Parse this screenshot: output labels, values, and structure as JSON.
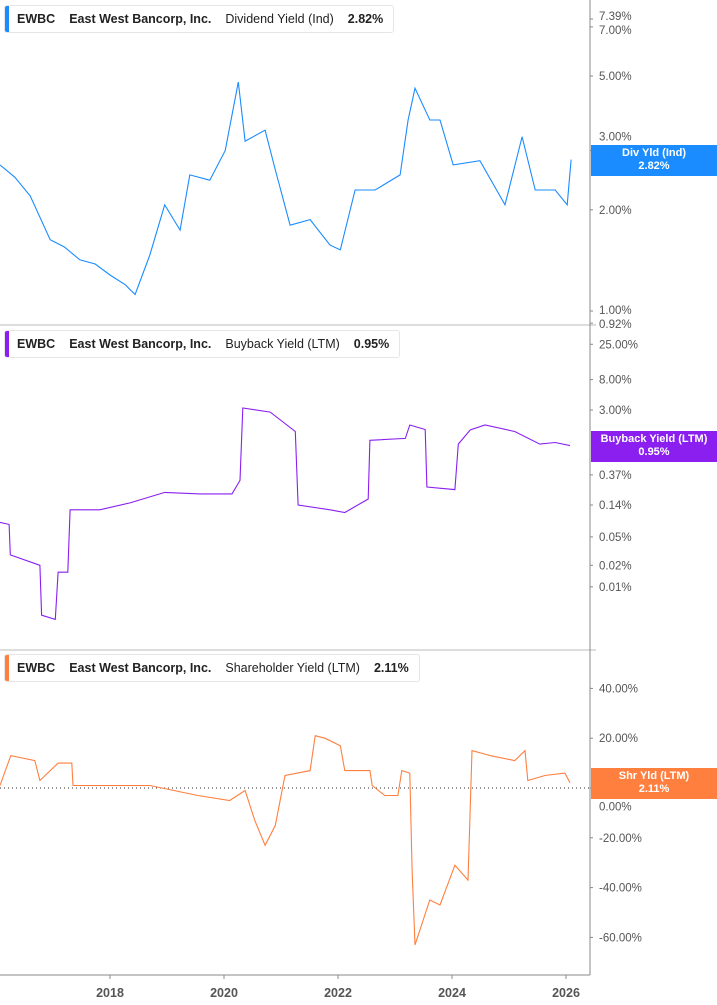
{
  "chart_data": [
    {
      "type": "line",
      "ticker": "EWBC",
      "company": "East West Bancorp, Inc.",
      "metric": "Dividend Yield (Ind)",
      "latest_value": "2.82%",
      "tag_label": "Div Yld (Ind)",
      "color": "#1a8cff",
      "yscale": "log",
      "ylim": [
        0.92,
        7.39
      ],
      "yticks": [
        7.39,
        7.0,
        5.0,
        3.0,
        2.0,
        1.0,
        0.92
      ],
      "ytick_labels": [
        "7.39%",
        "7.00%",
        "5.00%",
        "3.00%",
        "2.00%",
        "1.00%",
        "0.92%"
      ],
      "points": [
        [
          2016.07,
          2.72
        ],
        [
          2016.33,
          2.5
        ],
        [
          2016.6,
          2.2
        ],
        [
          2016.95,
          1.63
        ],
        [
          2017.2,
          1.55
        ],
        [
          2017.47,
          1.42
        ],
        [
          2017.74,
          1.38
        ],
        [
          2018.0,
          1.28
        ],
        [
          2018.26,
          1.2
        ],
        [
          2018.44,
          1.12
        ],
        [
          2018.7,
          1.47
        ],
        [
          2018.96,
          2.07
        ],
        [
          2019.23,
          1.74
        ],
        [
          2019.4,
          2.54
        ],
        [
          2019.75,
          2.45
        ],
        [
          2020.02,
          3.0
        ],
        [
          2020.25,
          4.8
        ],
        [
          2020.37,
          3.2
        ],
        [
          2020.72,
          3.45
        ],
        [
          2020.9,
          2.63
        ],
        [
          2021.16,
          1.8
        ],
        [
          2021.51,
          1.87
        ],
        [
          2021.86,
          1.57
        ],
        [
          2022.04,
          1.52
        ],
        [
          2022.3,
          2.29
        ],
        [
          2022.65,
          2.29
        ],
        [
          2023.09,
          2.54
        ],
        [
          2023.23,
          3.7
        ],
        [
          2023.35,
          4.6
        ],
        [
          2023.61,
          3.7
        ],
        [
          2023.79,
          3.7
        ],
        [
          2024.02,
          2.72
        ],
        [
          2024.49,
          2.8
        ],
        [
          2024.93,
          2.07
        ],
        [
          2025.23,
          3.3
        ],
        [
          2025.46,
          2.29
        ],
        [
          2025.81,
          2.29
        ],
        [
          2026.02,
          2.07
        ],
        [
          2026.09,
          2.82
        ]
      ]
    },
    {
      "type": "line",
      "ticker": "EWBC",
      "company": "East West Bancorp, Inc.",
      "metric": "Buyback Yield (LTM)",
      "latest_value": "0.95%",
      "tag_label": "Buyback Yield (LTM)",
      "color": "#8a1ff0",
      "yscale": "log",
      "yticks": [
        25,
        8,
        3,
        0.37,
        0.14,
        0.05,
        0.02,
        0.01
      ],
      "ytick_labels": [
        "25.00%",
        "8.00%",
        "3.00%",
        "0.37%",
        "0.14%",
        "0.05%",
        "0.02%",
        "0.01%"
      ],
      "points": [
        [
          2016.07,
          0.08
        ],
        [
          2016.23,
          0.075
        ],
        [
          2016.25,
          0.028
        ],
        [
          2016.77,
          0.02
        ],
        [
          2016.8,
          0.004
        ],
        [
          2017.04,
          0.0035
        ],
        [
          2017.09,
          0.016
        ],
        [
          2017.26,
          0.016
        ],
        [
          2017.3,
          0.12
        ],
        [
          2017.82,
          0.12
        ],
        [
          2018.35,
          0.15
        ],
        [
          2018.96,
          0.21
        ],
        [
          2019.58,
          0.2
        ],
        [
          2020.14,
          0.2
        ],
        [
          2020.28,
          0.31
        ],
        [
          2020.33,
          3.2
        ],
        [
          2020.81,
          2.8
        ],
        [
          2021.25,
          1.5
        ],
        [
          2021.3,
          0.14
        ],
        [
          2021.86,
          0.12
        ],
        [
          2022.12,
          0.11
        ],
        [
          2022.53,
          0.17
        ],
        [
          2022.56,
          1.13
        ],
        [
          2023.18,
          1.2
        ],
        [
          2023.26,
          1.85
        ],
        [
          2023.53,
          1.6
        ],
        [
          2023.56,
          0.25
        ],
        [
          2024.05,
          0.23
        ],
        [
          2024.11,
          1.0
        ],
        [
          2024.32,
          1.58
        ],
        [
          2024.58,
          1.85
        ],
        [
          2025.1,
          1.5
        ],
        [
          2025.54,
          1.0
        ],
        [
          2025.81,
          1.05
        ],
        [
          2026.07,
          0.95
        ]
      ]
    },
    {
      "type": "line",
      "ticker": "EWBC",
      "company": "East West Bancorp, Inc.",
      "metric": "Shareholder Yield (LTM)",
      "latest_value": "2.11%",
      "tag_label": "Shr Yld (LTM)",
      "color": "#ff7f3f",
      "yscale": "linear",
      "zero_line": "dotted",
      "yticks": [
        40,
        20,
        0,
        -20,
        -40,
        -60
      ],
      "ytick_labels": [
        "40.00%",
        "20.00%",
        "0.00%",
        "-20.00%",
        "-40.00%",
        "-60.00%"
      ],
      "points": [
        [
          2016.07,
          1
        ],
        [
          2016.26,
          13
        ],
        [
          2016.68,
          11
        ],
        [
          2016.77,
          3
        ],
        [
          2017.09,
          10
        ],
        [
          2017.33,
          10
        ],
        [
          2017.35,
          1
        ],
        [
          2018.7,
          1
        ],
        [
          2019.54,
          -3
        ],
        [
          2020.1,
          -5
        ],
        [
          2020.37,
          -1
        ],
        [
          2020.54,
          -13
        ],
        [
          2020.72,
          -23
        ],
        [
          2020.9,
          -15
        ],
        [
          2021.07,
          5
        ],
        [
          2021.51,
          7
        ],
        [
          2021.6,
          21
        ],
        [
          2021.77,
          20
        ],
        [
          2022.04,
          17
        ],
        [
          2022.12,
          7
        ],
        [
          2022.56,
          7
        ],
        [
          2022.6,
          1
        ],
        [
          2022.82,
          -3
        ],
        [
          2023.05,
          -3
        ],
        [
          2023.12,
          7
        ],
        [
          2023.26,
          6
        ],
        [
          2023.3,
          -33
        ],
        [
          2023.35,
          -63
        ],
        [
          2023.61,
          -45
        ],
        [
          2023.79,
          -47
        ],
        [
          2024.05,
          -31
        ],
        [
          2024.28,
          -37
        ],
        [
          2024.35,
          15
        ],
        [
          2024.67,
          13
        ],
        [
          2025.1,
          11
        ],
        [
          2025.28,
          15
        ],
        [
          2025.33,
          3
        ],
        [
          2025.63,
          5
        ],
        [
          2025.98,
          6
        ],
        [
          2026.07,
          2.11
        ]
      ]
    }
  ],
  "x_axis": {
    "ticks": [
      2018,
      2020,
      2022,
      2024,
      2026
    ],
    "labels": [
      "2018",
      "2020",
      "2022",
      "2024",
      "2026"
    ]
  }
}
